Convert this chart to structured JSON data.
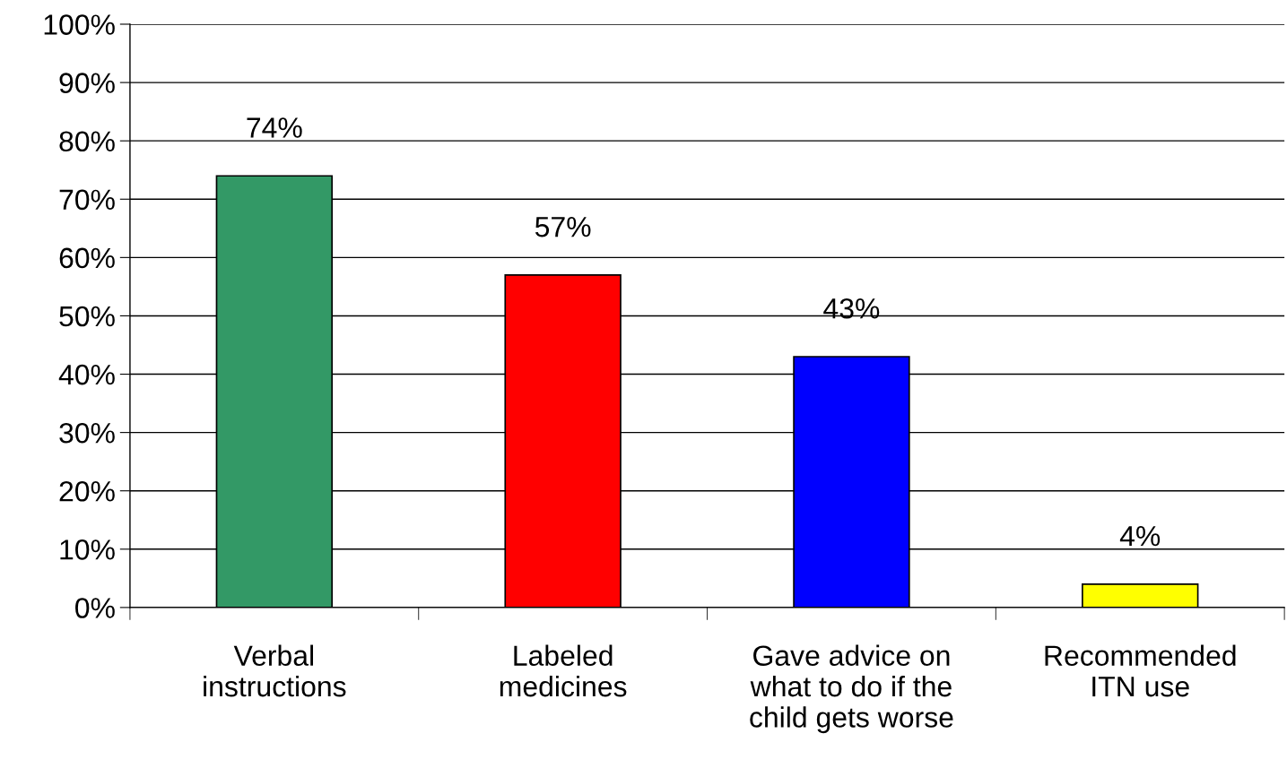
{
  "chart_data": {
    "type": "bar",
    "categories": [
      "Verbal\ninstructions",
      "Labeled\nmedicines",
      "Gave advice on\nwhat to do if the\nchild gets worse",
      "Recommended\nITN use"
    ],
    "values": [
      74,
      57,
      43,
      4
    ],
    "colors": [
      "#339966",
      "#ff0000",
      "#0000ff",
      "#ffff00"
    ],
    "data_labels": true,
    "value_labels": [
      "74%",
      "57%",
      "43%",
      "4%"
    ],
    "ylim": [
      0,
      100
    ],
    "yticks": [
      {
        "value": 0,
        "label": "0%"
      },
      {
        "value": 10,
        "label": "10%"
      },
      {
        "value": 20,
        "label": "20%"
      },
      {
        "value": 30,
        "label": "30%"
      },
      {
        "value": 40,
        "label": "40%"
      },
      {
        "value": 50,
        "label": "50%"
      },
      {
        "value": 60,
        "label": "60%"
      },
      {
        "value": 70,
        "label": "70%"
      },
      {
        "value": 80,
        "label": "80%"
      },
      {
        "value": 90,
        "label": "90%"
      },
      {
        "value": 100,
        "label": "100%"
      }
    ],
    "grid": "y",
    "legend": false
  }
}
